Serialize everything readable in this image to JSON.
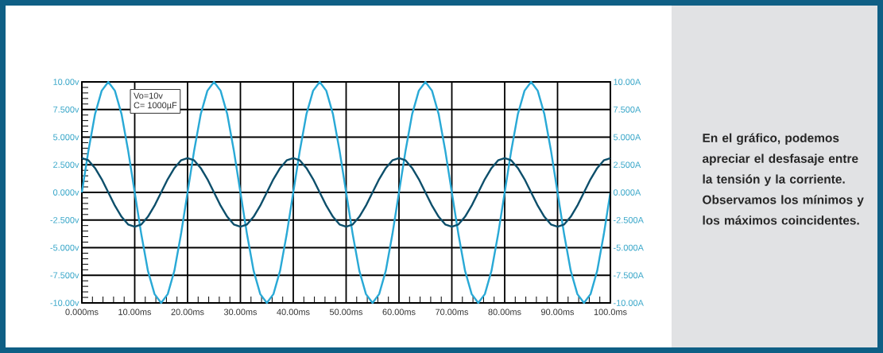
{
  "chart_data": {
    "type": "line",
    "x": [
      0,
      1.25,
      2.5,
      3.75,
      5,
      6.25,
      7.5,
      8.75,
      10,
      11.25,
      12.5,
      13.75,
      15,
      16.25,
      17.5,
      18.75,
      20,
      21.25,
      22.5,
      23.75,
      25,
      26.25,
      27.5,
      28.75,
      30,
      31.25,
      32.5,
      33.75,
      35,
      36.25,
      37.5,
      38.75,
      40,
      41.25,
      42.5,
      43.75,
      45,
      46.25,
      47.5,
      48.75,
      50,
      51.25,
      52.5,
      53.75,
      55,
      56.25,
      57.5,
      58.75,
      60,
      61.25,
      62.5,
      63.75,
      65,
      66.25,
      67.5,
      68.75,
      70,
      71.25,
      72.5,
      73.75,
      75,
      76.25,
      77.5,
      78.75,
      80,
      81.25,
      82.5,
      83.75,
      85,
      86.25,
      87.5,
      88.75,
      90,
      91.25,
      92.5,
      93.75,
      95,
      96.25,
      97.5,
      98.75,
      100
    ],
    "series": [
      {
        "color": "#29a9d6",
        "values": [
          0,
          3.8,
          7.1,
          9.2,
          10,
          9.2,
          7.1,
          3.8,
          0,
          -3.8,
          -7.1,
          -9.2,
          -10,
          -9.2,
          -7.1,
          -3.8,
          0,
          3.8,
          7.1,
          9.2,
          10,
          9.2,
          7.1,
          3.8,
          0,
          -3.8,
          -7.1,
          -9.2,
          -10,
          -9.2,
          -7.1,
          -3.8,
          0,
          3.8,
          7.1,
          9.2,
          10,
          9.2,
          7.1,
          3.8,
          0,
          -3.8,
          -7.1,
          -9.2,
          -10,
          -9.2,
          -7.1,
          -3.8,
          0,
          3.8,
          7.1,
          9.2,
          10,
          9.2,
          7.1,
          3.8,
          0,
          -3.8,
          -7.1,
          -9.2,
          -10,
          -9.2,
          -7.1,
          -3.8,
          0,
          3.8,
          7.1,
          9.2,
          10,
          9.2,
          7.1,
          3.8,
          0,
          -3.8,
          -7.1,
          -9.2,
          -10,
          -9.2,
          -7.1,
          -3.8,
          0
        ]
      },
      {
        "color": "#0d4f6b",
        "axis": "y2",
        "values": [
          3.1,
          2.9,
          2.2,
          1.2,
          0,
          -1.2,
          -2.2,
          -2.9,
          -3.1,
          -2.9,
          -2.2,
          -1.2,
          0,
          1.2,
          2.2,
          2.9,
          3.1,
          2.9,
          2.2,
          1.2,
          0,
          -1.2,
          -2.2,
          -2.9,
          -3.1,
          -2.9,
          -2.2,
          -1.2,
          0,
          1.2,
          2.2,
          2.9,
          3.1,
          2.9,
          2.2,
          1.2,
          0,
          -1.2,
          -2.2,
          -2.9,
          -3.1,
          -2.9,
          -2.2,
          -1.2,
          0,
          1.2,
          2.2,
          2.9,
          3.1,
          2.9,
          2.2,
          1.2,
          0,
          -1.2,
          -2.2,
          -2.9,
          -3.1,
          -2.9,
          -2.2,
          -1.2,
          0,
          1.2,
          2.2,
          2.9,
          3.1,
          2.9,
          2.2,
          1.2,
          0,
          -1.2,
          -2.2,
          -2.9,
          -3.1,
          -2.9,
          -2.2,
          -1.2,
          0,
          1.2,
          2.2,
          2.9,
          3.1
        ]
      }
    ],
    "xlim": [
      0,
      100
    ],
    "xticks": [
      {
        "value": 0,
        "label": "0.000ms"
      },
      {
        "value": 10,
        "label": "10.00ms"
      },
      {
        "value": 20,
        "label": "20.00ms"
      },
      {
        "value": 30,
        "label": "30.00ms"
      },
      {
        "value": 40,
        "label": "40.00ms"
      },
      {
        "value": 50,
        "label": "50.00ms"
      },
      {
        "value": 60,
        "label": "60.00ms"
      },
      {
        "value": 70,
        "label": "70.00ms"
      },
      {
        "value": 80,
        "label": "80.00ms"
      },
      {
        "value": 90,
        "label": "90.00ms"
      },
      {
        "value": 100,
        "label": "100.0ms"
      }
    ],
    "ylim": [
      -10,
      10
    ],
    "yticks": [
      {
        "value": -10,
        "label": "-10.00v"
      },
      {
        "value": -7.5,
        "label": "-7.500v"
      },
      {
        "value": -5,
        "label": "-5.000v"
      },
      {
        "value": -2.5,
        "label": "-2.500v"
      },
      {
        "value": 0,
        "label": "0.000v"
      },
      {
        "value": 2.5,
        "label": "2.500v"
      },
      {
        "value": 5,
        "label": "5.000v"
      },
      {
        "value": 7.5,
        "label": "7.500v"
      },
      {
        "value": 10,
        "label": "10.00v"
      }
    ],
    "y2lim": [
      -10,
      10
    ],
    "y2ticks": [
      {
        "value": -10,
        "label": "-10.00A"
      },
      {
        "value": -7.5,
        "label": "-7.500A"
      },
      {
        "value": -5,
        "label": "-5.000A"
      },
      {
        "value": -2.5,
        "label": "-2.500A"
      },
      {
        "value": 0,
        "label": "0.000A"
      },
      {
        "value": 2.5,
        "label": "2.500A"
      },
      {
        "value": 5,
        "label": "5.000A"
      },
      {
        "value": 7.5,
        "label": "7.500A"
      },
      {
        "value": 10,
        "label": "10.00A"
      }
    ],
    "grid": true,
    "annotations": [
      "Vo=10v",
      "C= 1000µF",
      "En el gráfico, podemos apreciar el desfasaje entre la tensión y la corriente. Observamos los mínimos y los máximos coincidentes."
    ]
  }
}
